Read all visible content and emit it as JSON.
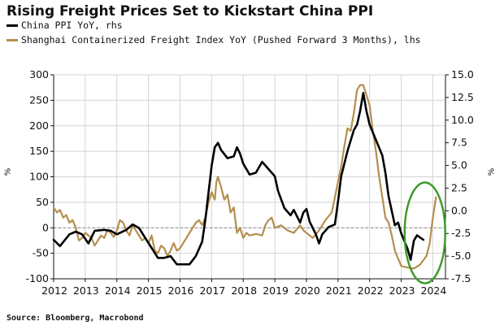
{
  "title": "Rising Freight Prices Set to Kickstart China PPI",
  "legend": [
    {
      "label": "China PPI YoY, rhs",
      "color": "#000000"
    },
    {
      "label": "Shanghai Containerized Freight Index YoY (Pushed Forward 3 Months), lhs",
      "color": "#b58e4f"
    }
  ],
  "source": "Source: Bloomberg, Macrobond",
  "units": {
    "left": "%",
    "right": "%"
  },
  "highlight_color": "#3f9a2c",
  "chart_data": {
    "type": "line",
    "x_ticks": [
      "2012",
      "2013",
      "2014",
      "2015",
      "2016",
      "2017",
      "2018",
      "2019",
      "2020",
      "2021",
      "2022",
      "2023",
      "2024"
    ],
    "xlim": [
      2012,
      2024.4
    ],
    "left_axis": {
      "ticks": [
        "300",
        "250",
        "200",
        "150",
        "100",
        "50",
        "0",
        "-50",
        "-100"
      ],
      "ylim": [
        -100,
        300
      ]
    },
    "right_axis": {
      "ticks": [
        "15.0",
        "12.5",
        "10.0",
        "7.5",
        "5.0",
        "2.5",
        "0.0",
        "-2.5",
        "-5.0",
        "-7.5"
      ],
      "ylim": [
        -7.5,
        15
      ]
    },
    "zero_line": true,
    "series": [
      {
        "name": "China PPI YoY, rhs",
        "axis": "right",
        "color": "#000000",
        "points": [
          [
            2012.0,
            -3.2
          ],
          [
            2012.2,
            -3.9
          ],
          [
            2012.5,
            -2.6
          ],
          [
            2012.7,
            -2.3
          ],
          [
            2012.9,
            -2.6
          ],
          [
            2013.1,
            -3.6
          ],
          [
            2013.3,
            -2.2
          ],
          [
            2013.6,
            -2.1
          ],
          [
            2013.8,
            -2.2
          ],
          [
            2014.0,
            -2.6
          ],
          [
            2014.3,
            -2.1
          ],
          [
            2014.5,
            -1.5
          ],
          [
            2014.7,
            -1.9
          ],
          [
            2014.9,
            -3.0
          ],
          [
            2015.1,
            -4.1
          ],
          [
            2015.3,
            -5.2
          ],
          [
            2015.5,
            -5.2
          ],
          [
            2015.7,
            -5.0
          ],
          [
            2015.9,
            -5.9
          ],
          [
            2016.1,
            -5.9
          ],
          [
            2016.3,
            -5.9
          ],
          [
            2016.5,
            -5.0
          ],
          [
            2016.7,
            -3.4
          ],
          [
            2016.8,
            -1.0
          ],
          [
            2016.9,
            2.0
          ],
          [
            2017.0,
            5.0
          ],
          [
            2017.1,
            7.0
          ],
          [
            2017.2,
            7.5
          ],
          [
            2017.3,
            6.7
          ],
          [
            2017.5,
            5.8
          ],
          [
            2017.7,
            6.0
          ],
          [
            2017.8,
            7.0
          ],
          [
            2017.9,
            6.3
          ],
          [
            2018.0,
            5.2
          ],
          [
            2018.2,
            4.0
          ],
          [
            2018.4,
            4.2
          ],
          [
            2018.6,
            5.4
          ],
          [
            2018.8,
            4.6
          ],
          [
            2019.0,
            3.8
          ],
          [
            2019.1,
            2.2
          ],
          [
            2019.3,
            0.3
          ],
          [
            2019.5,
            -0.5
          ],
          [
            2019.6,
            0.1
          ],
          [
            2019.8,
            -1.3
          ],
          [
            2019.9,
            -0.2
          ],
          [
            2020.0,
            0.2
          ],
          [
            2020.1,
            -1.2
          ],
          [
            2020.3,
            -2.6
          ],
          [
            2020.4,
            -3.6
          ],
          [
            2020.5,
            -2.6
          ],
          [
            2020.7,
            -1.8
          ],
          [
            2020.9,
            -1.5
          ],
          [
            2021.0,
            1.0
          ],
          [
            2021.1,
            3.8
          ],
          [
            2021.3,
            6.6
          ],
          [
            2021.5,
            8.9
          ],
          [
            2021.6,
            9.5
          ],
          [
            2021.7,
            11.0
          ],
          [
            2021.8,
            13.0
          ],
          [
            2021.9,
            11.0
          ],
          [
            2022.0,
            9.5
          ],
          [
            2022.2,
            7.8
          ],
          [
            2022.4,
            6.1
          ],
          [
            2022.5,
            4.2
          ],
          [
            2022.6,
            1.6
          ],
          [
            2022.8,
            -1.6
          ],
          [
            2022.9,
            -1.3
          ],
          [
            2023.0,
            -2.5
          ],
          [
            2023.2,
            -4.2
          ],
          [
            2023.3,
            -5.4
          ],
          [
            2023.4,
            -3.3
          ],
          [
            2023.5,
            -2.7
          ],
          [
            2023.7,
            -3.2
          ]
        ]
      },
      {
        "name": "Shanghai Containerized Freight Index YoY (Pushed Forward 3 Months), lhs",
        "axis": "left",
        "color": "#b58e4f",
        "points": [
          [
            2012.0,
            40
          ],
          [
            2012.1,
            30
          ],
          [
            2012.2,
            35
          ],
          [
            2012.3,
            20
          ],
          [
            2012.4,
            25
          ],
          [
            2012.5,
            10
          ],
          [
            2012.6,
            15
          ],
          [
            2012.7,
            0
          ],
          [
            2012.8,
            -25
          ],
          [
            2012.9,
            -20
          ],
          [
            2013.0,
            -10
          ],
          [
            2013.1,
            -15
          ],
          [
            2013.2,
            -20
          ],
          [
            2013.3,
            -35
          ],
          [
            2013.4,
            -25
          ],
          [
            2013.5,
            -15
          ],
          [
            2013.6,
            -20
          ],
          [
            2013.7,
            -5
          ],
          [
            2013.8,
            -10
          ],
          [
            2013.9,
            -18
          ],
          [
            2014.0,
            -5
          ],
          [
            2014.1,
            15
          ],
          [
            2014.2,
            10
          ],
          [
            2014.3,
            -5
          ],
          [
            2014.4,
            -15
          ],
          [
            2014.5,
            5
          ],
          [
            2014.6,
            -5
          ],
          [
            2014.8,
            -25
          ],
          [
            2014.9,
            -20
          ],
          [
            2015.0,
            -30
          ],
          [
            2015.1,
            -15
          ],
          [
            2015.2,
            -45
          ],
          [
            2015.3,
            -50
          ],
          [
            2015.4,
            -35
          ],
          [
            2015.5,
            -40
          ],
          [
            2015.6,
            -55
          ],
          [
            2015.7,
            -45
          ],
          [
            2015.8,
            -30
          ],
          [
            2015.9,
            -45
          ],
          [
            2016.0,
            -40
          ],
          [
            2016.1,
            -30
          ],
          [
            2016.2,
            -20
          ],
          [
            2016.3,
            -10
          ],
          [
            2016.4,
            0
          ],
          [
            2016.5,
            10
          ],
          [
            2016.6,
            15
          ],
          [
            2016.7,
            5
          ],
          [
            2016.8,
            20
          ],
          [
            2016.9,
            50
          ],
          [
            2017.0,
            70
          ],
          [
            2017.1,
            55
          ],
          [
            2017.15,
            90
          ],
          [
            2017.2,
            100
          ],
          [
            2017.3,
            80
          ],
          [
            2017.4,
            55
          ],
          [
            2017.5,
            65
          ],
          [
            2017.6,
            30
          ],
          [
            2017.7,
            40
          ],
          [
            2017.8,
            -10
          ],
          [
            2017.9,
            0
          ],
          [
            2018.0,
            -20
          ],
          [
            2018.1,
            -10
          ],
          [
            2018.2,
            -15
          ],
          [
            2018.4,
            -12
          ],
          [
            2018.6,
            -15
          ],
          [
            2018.7,
            5
          ],
          [
            2018.8,
            15
          ],
          [
            2018.9,
            20
          ],
          [
            2019.0,
            0
          ],
          [
            2019.2,
            5
          ],
          [
            2019.4,
            -5
          ],
          [
            2019.6,
            -10
          ],
          [
            2019.8,
            5
          ],
          [
            2019.9,
            -5
          ],
          [
            2020.0,
            -10
          ],
          [
            2020.2,
            -20
          ],
          [
            2020.4,
            -5
          ],
          [
            2020.6,
            15
          ],
          [
            2020.8,
            30
          ],
          [
            2020.9,
            60
          ],
          [
            2021.0,
            90
          ],
          [
            2021.1,
            120
          ],
          [
            2021.2,
            160
          ],
          [
            2021.3,
            195
          ],
          [
            2021.4,
            190
          ],
          [
            2021.5,
            225
          ],
          [
            2021.6,
            270
          ],
          [
            2021.7,
            280
          ],
          [
            2021.8,
            280
          ],
          [
            2021.9,
            260
          ],
          [
            2022.0,
            240
          ],
          [
            2022.1,
            190
          ],
          [
            2022.2,
            150
          ],
          [
            2022.3,
            100
          ],
          [
            2022.4,
            60
          ],
          [
            2022.5,
            20
          ],
          [
            2022.6,
            10
          ],
          [
            2022.7,
            -15
          ],
          [
            2022.8,
            -45
          ],
          [
            2022.9,
            -60
          ],
          [
            2023.0,
            -75
          ],
          [
            2023.2,
            -78
          ],
          [
            2023.4,
            -80
          ],
          [
            2023.6,
            -72
          ],
          [
            2023.8,
            -55
          ],
          [
            2023.9,
            -30
          ],
          [
            2024.0,
            20
          ],
          [
            2024.1,
            60
          ]
        ]
      }
    ]
  }
}
